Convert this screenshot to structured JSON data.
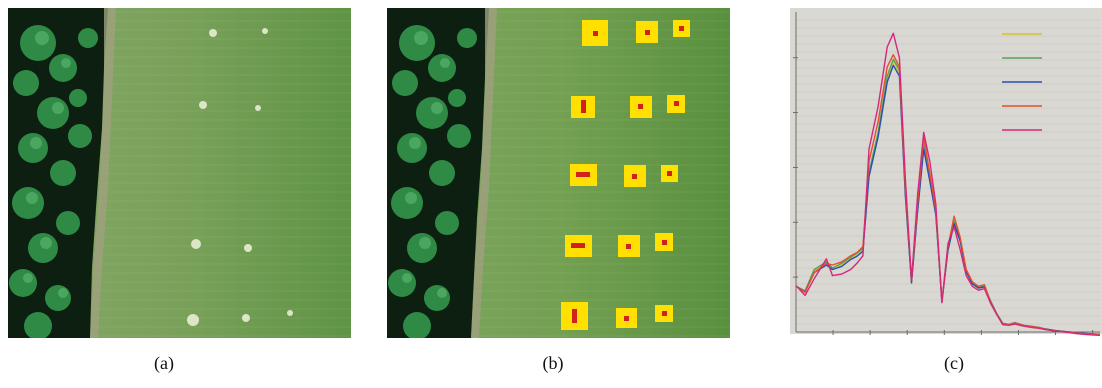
{
  "captions": {
    "a": "(a)",
    "b": "(b)",
    "c": "(c)"
  },
  "colors": {
    "field_green": "#6e9c4a",
    "forest_dark": "#0d1f10",
    "tree_canopy": "#2f8a46",
    "marker_yellow": "#ffe000",
    "marker_red": "#d2201a",
    "chart_background": "#d9d8d2"
  },
  "panel_b_marker_count": 15,
  "chart_data": {
    "type": "line",
    "title": "",
    "xlabel": "",
    "ylabel": "",
    "x_tick_count": 8,
    "y_tick_count": 6,
    "x": [
      0,
      0.3,
      0.6,
      1.0,
      1.2,
      1.5,
      1.8,
      2.0,
      2.2,
      2.4,
      2.7,
      3.0,
      3.2,
      3.4,
      3.6,
      3.8,
      4.0,
      4.2,
      4.4,
      4.6,
      4.8,
      5.0,
      5.2,
      5.4,
      5.6,
      5.8,
      6.0,
      6.2,
      6.4,
      6.6,
      6.8,
      7.0,
      7.2,
      7.5,
      7.8,
      8.0,
      8.2,
      8.5,
      8.8,
      9.0,
      9.2,
      9.5,
      10.0
    ],
    "series": [
      {
        "color": "#d8c12e",
        "values": [
          0.15,
          0.135,
          0.2,
          0.225,
          0.205,
          0.22,
          0.24,
          0.25,
          0.27,
          0.52,
          0.65,
          0.83,
          0.89,
          0.85,
          0.45,
          0.165,
          0.4,
          0.61,
          0.5,
          0.39,
          0.1,
          0.27,
          0.36,
          0.3,
          0.2,
          0.16,
          0.145,
          0.15,
          0.1,
          0.06,
          0.028,
          0.025,
          0.03,
          0.022,
          0.018,
          0.015,
          0.01,
          0.005,
          0.002,
          0.0,
          -0.002,
          -0.005,
          -0.008
        ]
      },
      {
        "color": "#5aa35a",
        "values": [
          0.15,
          0.135,
          0.205,
          0.23,
          0.21,
          0.225,
          0.245,
          0.258,
          0.275,
          0.525,
          0.655,
          0.84,
          0.895,
          0.86,
          0.455,
          0.16,
          0.405,
          0.615,
          0.505,
          0.392,
          0.1,
          0.272,
          0.365,
          0.303,
          0.202,
          0.162,
          0.147,
          0.15,
          0.102,
          0.061,
          0.029,
          0.025,
          0.031,
          0.022,
          0.018,
          0.015,
          0.01,
          0.005,
          0.002,
          0.0,
          -0.002,
          -0.005,
          -0.008
        ]
      },
      {
        "color": "#2a4fb0",
        "values": [
          0.15,
          0.132,
          0.195,
          0.22,
          0.205,
          0.215,
          0.238,
          0.248,
          0.265,
          0.51,
          0.64,
          0.82,
          0.875,
          0.84,
          0.445,
          0.162,
          0.395,
          0.6,
          0.495,
          0.385,
          0.1,
          0.268,
          0.355,
          0.298,
          0.198,
          0.158,
          0.144,
          0.148,
          0.1,
          0.06,
          0.027,
          0.024,
          0.03,
          0.021,
          0.017,
          0.014,
          0.01,
          0.005,
          0.002,
          0.0,
          -0.002,
          -0.005,
          -0.008
        ]
      },
      {
        "color": "#e6502a",
        "values": [
          0.15,
          0.13,
          0.195,
          0.225,
          0.22,
          0.23,
          0.25,
          0.26,
          0.28,
          0.56,
          0.69,
          0.87,
          0.91,
          0.87,
          0.47,
          0.17,
          0.42,
          0.64,
          0.52,
          0.4,
          0.098,
          0.28,
          0.38,
          0.31,
          0.205,
          0.165,
          0.15,
          0.155,
          0.098,
          0.058,
          0.026,
          0.024,
          0.03,
          0.021,
          0.017,
          0.014,
          0.009,
          0.004,
          0.001,
          0.0,
          -0.003,
          -0.006,
          -0.009
        ]
      },
      {
        "color": "#d6287a",
        "values": [
          0.152,
          0.12,
          0.175,
          0.24,
          0.185,
          0.19,
          0.205,
          0.225,
          0.25,
          0.6,
          0.74,
          0.935,
          0.98,
          0.9,
          0.5,
          0.168,
          0.45,
          0.655,
          0.56,
          0.42,
          0.096,
          0.29,
          0.345,
          0.27,
          0.185,
          0.15,
          0.137,
          0.142,
          0.094,
          0.058,
          0.024,
          0.022,
          0.026,
          0.019,
          0.014,
          0.012,
          0.008,
          0.003,
          0.0,
          -0.002,
          -0.005,
          -0.008,
          -0.011
        ]
      }
    ],
    "ylim": [
      0,
      1.05
    ],
    "xlim": [
      0,
      10
    ],
    "legend_position": "top-right",
    "grid": true
  }
}
